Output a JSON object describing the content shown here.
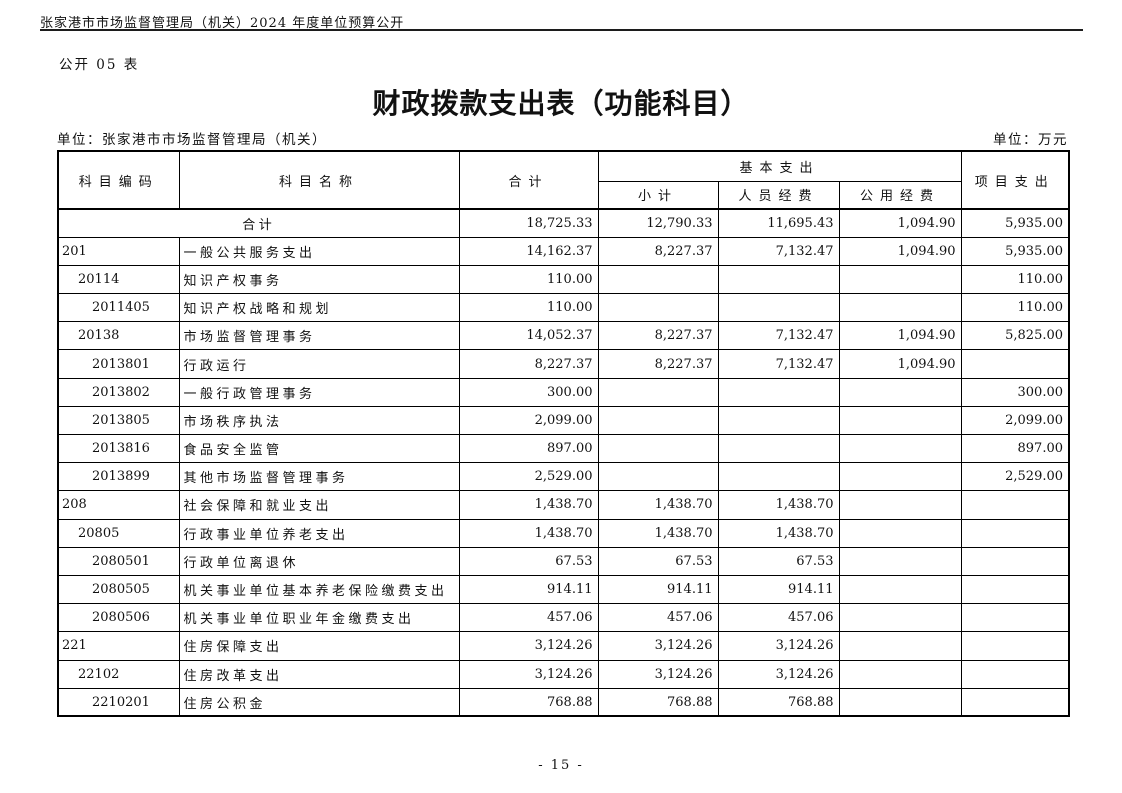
{
  "page": {
    "running_header": "张家港市市场监督管理局（机关）2024 年度单位预算公开",
    "table_label": "公开 05 表",
    "title": "财政拨款支出表（功能科目）",
    "unit_left": "单位：张家港市市场监督管理局（机关）",
    "unit_right": "单位：万元",
    "page_number": "- 15 -"
  },
  "table": {
    "headers": {
      "code": "科目编码",
      "name": "科目名称",
      "total": "合计",
      "basic_group": "基本支出",
      "subtotal": "小计",
      "personnel": "人员经费",
      "public": "公用经费",
      "project": "项目支出"
    },
    "rows": [
      {
        "merged": true,
        "code": "",
        "indent": 0,
        "name": "合计",
        "values": [
          "18,725.33",
          "12,790.33",
          "11,695.43",
          "1,094.90",
          "5,935.00"
        ]
      },
      {
        "code": "201",
        "indent": 0,
        "name": "一般公共服务支出",
        "values": [
          "14,162.37",
          "8,227.37",
          "7,132.47",
          "1,094.90",
          "5,935.00"
        ]
      },
      {
        "code": "20114",
        "indent": 1,
        "name": "知识产权事务",
        "values": [
          "110.00",
          "",
          "",
          "",
          "110.00"
        ]
      },
      {
        "code": "2011405",
        "indent": 2,
        "name": "知识产权战略和规划",
        "values": [
          "110.00",
          "",
          "",
          "",
          "110.00"
        ]
      },
      {
        "code": "20138",
        "indent": 1,
        "name": "市场监督管理事务",
        "values": [
          "14,052.37",
          "8,227.37",
          "7,132.47",
          "1,094.90",
          "5,825.00"
        ]
      },
      {
        "code": "2013801",
        "indent": 2,
        "name": "行政运行",
        "values": [
          "8,227.37",
          "8,227.37",
          "7,132.47",
          "1,094.90",
          ""
        ]
      },
      {
        "code": "2013802",
        "indent": 2,
        "name": "一般行政管理事务",
        "values": [
          "300.00",
          "",
          "",
          "",
          "300.00"
        ]
      },
      {
        "code": "2013805",
        "indent": 2,
        "name": "市场秩序执法",
        "values": [
          "2,099.00",
          "",
          "",
          "",
          "2,099.00"
        ]
      },
      {
        "code": "2013816",
        "indent": 2,
        "name": "食品安全监管",
        "values": [
          "897.00",
          "",
          "",
          "",
          "897.00"
        ]
      },
      {
        "code": "2013899",
        "indent": 2,
        "name": "其他市场监督管理事务",
        "values": [
          "2,529.00",
          "",
          "",
          "",
          "2,529.00"
        ]
      },
      {
        "code": "208",
        "indent": 0,
        "name": "社会保障和就业支出",
        "values": [
          "1,438.70",
          "1,438.70",
          "1,438.70",
          "",
          ""
        ]
      },
      {
        "code": "20805",
        "indent": 1,
        "name": "行政事业单位养老支出",
        "values": [
          "1,438.70",
          "1,438.70",
          "1,438.70",
          "",
          ""
        ]
      },
      {
        "code": "2080501",
        "indent": 2,
        "name": "行政单位离退休",
        "values": [
          "67.53",
          "67.53",
          "67.53",
          "",
          ""
        ]
      },
      {
        "code": "2080505",
        "indent": 2,
        "name": "机关事业单位基本养老保险缴费支出",
        "values": [
          "914.11",
          "914.11",
          "914.11",
          "",
          ""
        ]
      },
      {
        "code": "2080506",
        "indent": 2,
        "name": "机关事业单位职业年金缴费支出",
        "values": [
          "457.06",
          "457.06",
          "457.06",
          "",
          ""
        ]
      },
      {
        "code": "221",
        "indent": 0,
        "name": "住房保障支出",
        "values": [
          "3,124.26",
          "3,124.26",
          "3,124.26",
          "",
          ""
        ]
      },
      {
        "code": "22102",
        "indent": 1,
        "name": "住房改革支出",
        "values": [
          "3,124.26",
          "3,124.26",
          "3,124.26",
          "",
          ""
        ]
      },
      {
        "code": "2210201",
        "indent": 2,
        "name": "住房公积金",
        "values": [
          "768.88",
          "768.88",
          "768.88",
          "",
          ""
        ]
      }
    ]
  }
}
